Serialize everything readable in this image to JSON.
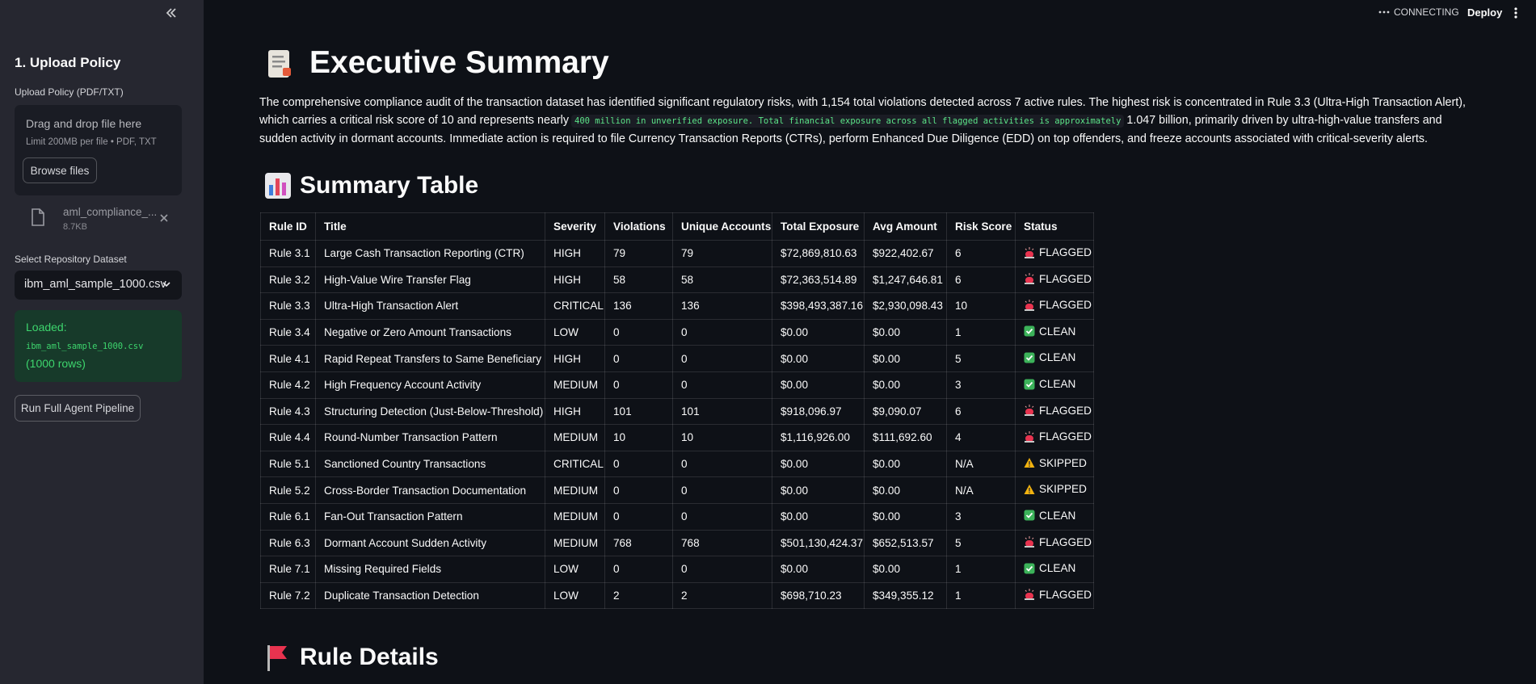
{
  "sidebar": {
    "title": "1. Upload Policy",
    "upload_label": "Upload Policy (PDF/TXT)",
    "dropzone": {
      "title": "Drag and drop file here",
      "limit": "Limit 200MB per file • PDF, TXT",
      "button": "Browse files"
    },
    "file": {
      "name": "aml_compliance_...",
      "size": "8.7KB"
    },
    "select_label": "Select Repository Dataset",
    "select_value": "ibm_aml_sample_1000.csv",
    "status": {
      "prefix": "Loaded:",
      "file": "ibm_aml_sample_1000.csv",
      "suffix": "(1000 rows)"
    },
    "run_button": "Run Full Agent Pipeline"
  },
  "toolbar": {
    "status": "CONNECTING",
    "deploy": "Deploy"
  },
  "main": {
    "title": "Executive Summary",
    "summary": {
      "before": "The comprehensive compliance audit of the transaction dataset has identified significant regulatory risks, with 1,154 total violations detected across 7 active rules. The highest risk is concentrated in Rule 3.3 (Ultra-High Transaction Alert), which carries a critical risk score of 10 and represents nearly",
      "code": "400 million in unverified exposure. Total financial exposure across all flagged activities is approximately",
      "after": "1.047 billion, primarily driven by ultra-high-value transfers and sudden activity in dormant accounts. Immediate action is required to file Currency Transaction Reports (CTRs), perform Enhanced Due Diligence (EDD) on top offenders, and freeze accounts associated with critical-severity alerts."
    },
    "table_heading": "Summary Table",
    "table": {
      "columns": [
        "Rule ID",
        "Title",
        "Severity",
        "Violations",
        "Unique Accounts",
        "Total Exposure",
        "Avg Amount",
        "Risk Score",
        "Status"
      ],
      "rows": [
        [
          "Rule 3.1",
          "Large Cash Transaction Reporting (CTR)",
          "HIGH",
          "79",
          "79",
          "$72,869,810.63",
          "$922,402.67",
          "6",
          "FLAGGED"
        ],
        [
          "Rule 3.2",
          "High-Value Wire Transfer Flag",
          "HIGH",
          "58",
          "58",
          "$72,363,514.89",
          "$1,247,646.81",
          "6",
          "FLAGGED"
        ],
        [
          "Rule 3.3",
          "Ultra-High Transaction Alert",
          "CRITICAL",
          "136",
          "136",
          "$398,493,387.16",
          "$2,930,098.43",
          "10",
          "FLAGGED"
        ],
        [
          "Rule 3.4",
          "Negative or Zero Amount Transactions",
          "LOW",
          "0",
          "0",
          "$0.00",
          "$0.00",
          "1",
          "CLEAN"
        ],
        [
          "Rule 4.1",
          "Rapid Repeat Transfers to Same Beneficiary",
          "HIGH",
          "0",
          "0",
          "$0.00",
          "$0.00",
          "5",
          "CLEAN"
        ],
        [
          "Rule 4.2",
          "High Frequency Account Activity",
          "MEDIUM",
          "0",
          "0",
          "$0.00",
          "$0.00",
          "3",
          "CLEAN"
        ],
        [
          "Rule 4.3",
          "Structuring Detection (Just-Below-Threshold)",
          "HIGH",
          "101",
          "101",
          "$918,096.97",
          "$9,090.07",
          "6",
          "FLAGGED"
        ],
        [
          "Rule 4.4",
          "Round-Number Transaction Pattern",
          "MEDIUM",
          "10",
          "10",
          "$1,116,926.00",
          "$111,692.60",
          "4",
          "FLAGGED"
        ],
        [
          "Rule 5.1",
          "Sanctioned Country Transactions",
          "CRITICAL",
          "0",
          "0",
          "$0.00",
          "$0.00",
          "N/A",
          "SKIPPED"
        ],
        [
          "Rule 5.2",
          "Cross-Border Transaction Documentation",
          "MEDIUM",
          "0",
          "0",
          "$0.00",
          "$0.00",
          "N/A",
          "SKIPPED"
        ],
        [
          "Rule 6.1",
          "Fan-Out Transaction Pattern",
          "MEDIUM",
          "0",
          "0",
          "$0.00",
          "$0.00",
          "3",
          "CLEAN"
        ],
        [
          "Rule 6.3",
          "Dormant Account Sudden Activity",
          "MEDIUM",
          "768",
          "768",
          "$501,130,424.37",
          "$652,513.57",
          "5",
          "FLAGGED"
        ],
        [
          "Rule 7.1",
          "Missing Required Fields",
          "LOW",
          "0",
          "0",
          "$0.00",
          "$0.00",
          "1",
          "CLEAN"
        ],
        [
          "Rule 7.2",
          "Duplicate Transaction Detection",
          "LOW",
          "2",
          "2",
          "$698,710.23",
          "$349,355.12",
          "1",
          "FLAGGED"
        ]
      ]
    },
    "details_heading": "Rule Details"
  }
}
